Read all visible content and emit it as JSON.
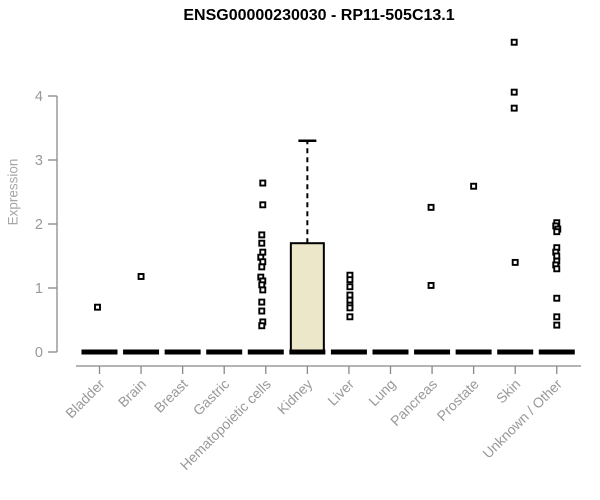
{
  "chart_data": {
    "type": "box",
    "title": "ENSG00000230030 - RP11-505C13.1",
    "ylabel": "Expression",
    "xlabel": "",
    "ylim": [
      0,
      4.9
    ],
    "yticks": [
      0,
      1,
      2,
      3,
      4
    ],
    "grid": false,
    "legend": null,
    "colors": {
      "box_fill": "#ece7c9",
      "box_stroke": "#000000",
      "whisker": "#000000",
      "median": "#000000",
      "point_stroke": "#000000",
      "point_fill": "#ffffff",
      "axis": "#888888",
      "tick_label": "#999999",
      "axis_label": "#a6a6a6",
      "title": "#000000",
      "background": "#ffffff"
    },
    "categories": [
      "Bladder",
      "Brain",
      "Breast",
      "Gastric",
      "Hematopoietic cells",
      "Kidney",
      "Liver",
      "Lung",
      "Pancreas",
      "Prostate",
      "Skin",
      "Unknown / Other"
    ],
    "boxes": [
      {
        "category": "Bladder",
        "median": 0,
        "q1": 0,
        "q3": 0,
        "whisker_low": 0,
        "whisker_high": 0,
        "points": [
          [
            0.7,
            -2
          ]
        ]
      },
      {
        "category": "Brain",
        "median": 0,
        "q1": 0,
        "q3": 0,
        "whisker_low": 0,
        "whisker_high": 0,
        "points": [
          [
            1.18,
            0
          ]
        ]
      },
      {
        "category": "Breast",
        "median": 0,
        "q1": 0,
        "q3": 0,
        "whisker_low": 0,
        "whisker_high": 0,
        "points": []
      },
      {
        "category": "Gastric",
        "median": 0,
        "q1": 0,
        "q3": 0,
        "whisker_low": 0,
        "whisker_high": 0,
        "points": []
      },
      {
        "category": "Hematopoietic cells",
        "median": 0,
        "q1": 0,
        "q3": 0,
        "whisker_low": 0,
        "whisker_high": 0,
        "points": [
          [
            2.64,
            -3
          ],
          [
            2.3,
            -3
          ],
          [
            1.83,
            -4
          ],
          [
            1.7,
            -4
          ],
          [
            1.56,
            -3
          ],
          [
            1.48,
            -5
          ],
          [
            1.41,
            -3
          ],
          [
            1.33,
            -4
          ],
          [
            1.17,
            -5
          ],
          [
            1.11,
            -3
          ],
          [
            1.05,
            -4
          ],
          [
            0.97,
            -3
          ],
          [
            0.78,
            -4
          ],
          [
            0.64,
            -4
          ],
          [
            0.47,
            -3
          ],
          [
            0.41,
            -4
          ]
        ]
      },
      {
        "category": "Kidney",
        "median": 0,
        "q1": 0,
        "q3": 1.7,
        "whisker_low": 0,
        "whisker_high": 3.3,
        "points": []
      },
      {
        "category": "Liver",
        "median": 0,
        "q1": 0,
        "q3": 0,
        "whisker_low": 0,
        "whisker_high": 0,
        "points": [
          [
            1.2,
            1
          ],
          [
            1.13,
            1
          ],
          [
            1.02,
            1
          ],
          [
            0.89,
            1
          ],
          [
            0.81,
            1
          ],
          [
            0.73,
            1
          ],
          [
            0.69,
            1
          ],
          [
            0.55,
            1
          ]
        ]
      },
      {
        "category": "Lung",
        "median": 0,
        "q1": 0,
        "q3": 0,
        "whisker_low": 0,
        "whisker_high": 0,
        "points": []
      },
      {
        "category": "Pancreas",
        "median": 0,
        "q1": 0,
        "q3": 0,
        "whisker_low": 0,
        "whisker_high": 0,
        "points": [
          [
            2.26,
            -1
          ],
          [
            1.04,
            -1
          ]
        ]
      },
      {
        "category": "Prostate",
        "median": 0,
        "q1": 0,
        "q3": 0,
        "whisker_low": 0,
        "whisker_high": 0,
        "points": [
          [
            2.59,
            0
          ]
        ]
      },
      {
        "category": "Skin",
        "median": 0,
        "q1": 0,
        "q3": 0,
        "whisker_low": 0,
        "whisker_high": 0,
        "points": [
          [
            4.84,
            -1
          ],
          [
            4.06,
            -1
          ],
          [
            3.81,
            -1
          ],
          [
            1.4,
            0
          ]
        ]
      },
      {
        "category": "Unknown / Other",
        "median": 0,
        "q1": 0,
        "q3": 0,
        "whisker_low": 0,
        "whisker_high": 0,
        "points": [
          [
            2.02,
            0
          ],
          [
            1.97,
            -1
          ],
          [
            1.92,
            1
          ],
          [
            1.88,
            0
          ],
          [
            1.63,
            0
          ],
          [
            1.56,
            -1
          ],
          [
            1.5,
            0
          ],
          [
            1.42,
            0
          ],
          [
            1.36,
            -1
          ],
          [
            1.3,
            0
          ],
          [
            0.84,
            0
          ],
          [
            0.55,
            0
          ],
          [
            0.42,
            0
          ]
        ]
      }
    ]
  }
}
